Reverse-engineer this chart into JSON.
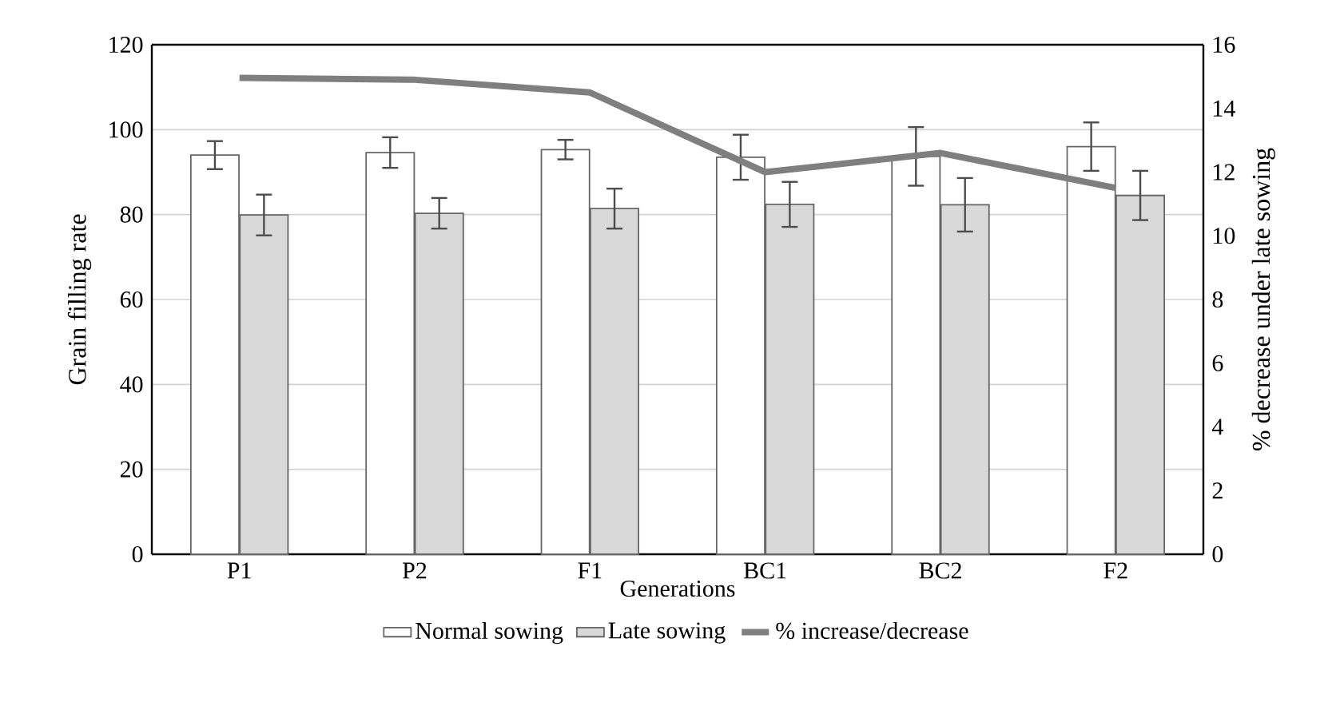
{
  "chart_data": {
    "type": "bar",
    "xlabel": "Generations",
    "ylabel": "Grain filling rate",
    "y2label": "% decrease under late sowing",
    "categories": [
      "P1",
      "P2",
      "F1",
      "BC1",
      "BC2",
      "F2"
    ],
    "series": [
      {
        "name": "Normal sowing",
        "color": "#ffffff",
        "values": [
          94.0,
          94.6,
          95.3,
          93.5,
          93.7,
          96.0
        ],
        "errors": [
          3.3,
          3.6,
          2.3,
          5.3,
          6.9,
          5.7
        ]
      },
      {
        "name": "Late sowing",
        "color": "#d9d9d9",
        "values": [
          79.9,
          80.3,
          81.4,
          82.4,
          82.3,
          84.5
        ],
        "errors": [
          4.8,
          3.6,
          4.7,
          5.3,
          6.3,
          5.8
        ]
      },
      {
        "name": "% increase/decrease",
        "type": "line",
        "axis": "y2",
        "color": "#7f7f7f",
        "values": [
          14.96,
          14.9,
          14.5,
          12.0,
          12.6,
          11.5
        ]
      }
    ],
    "ylim": [
      0,
      120
    ],
    "yticks": [
      0,
      20,
      40,
      60,
      80,
      100,
      120
    ],
    "y2lim": [
      0,
      16
    ],
    "y2ticks": [
      0,
      2,
      4,
      6,
      8,
      10,
      12,
      14,
      16
    ],
    "grid": "y",
    "legend": "bottom",
    "marker": "none",
    "line_style": "solid"
  }
}
